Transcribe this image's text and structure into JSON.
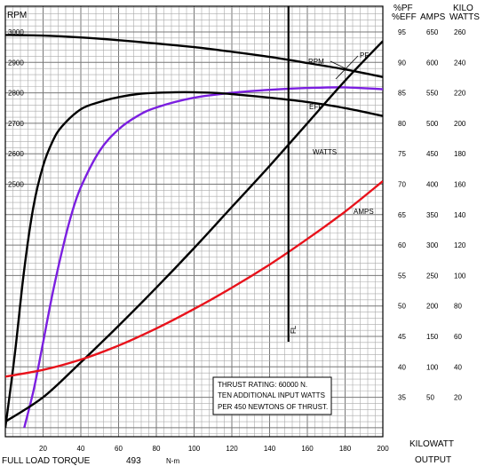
{
  "chart_data": {
    "type": "line",
    "x_axis": {
      "label": "KILOWATT",
      "label2": "OUTPUT",
      "range": [
        0,
        200
      ],
      "ticks": [
        20,
        40,
        60,
        80,
        100,
        120,
        140,
        160,
        180,
        200
      ]
    },
    "footer": {
      "full_load_label": "FULL LOAD TORQUE",
      "full_load_value": "493",
      "full_load_unit": "N-m"
    },
    "rpm_axis": {
      "label": "RPM",
      "range": [
        2200,
        3000
      ],
      "ticks": [
        "3000",
        "2900",
        "2800",
        "2700",
        "2600",
        "2500"
      ]
    },
    "right_axes": {
      "pf_header": "%PF",
      "eff_header": "%EFF",
      "amps_header": "AMPS",
      "kilo_header": "KILO",
      "watts_header": "WATTS",
      "pf_eff": [
        "95",
        "90",
        "85",
        "80",
        "75",
        "70",
        "65",
        "60",
        "55",
        "50",
        "45",
        "40",
        "35"
      ],
      "amps": [
        "650",
        "600",
        "550",
        "500",
        "450",
        "400",
        "350",
        "300",
        "250",
        "200",
        "150",
        "100",
        "50"
      ],
      "kilowatts": [
        "260",
        "240",
        "220",
        "200",
        "180",
        "160",
        "140",
        "120",
        "100",
        "80",
        "60",
        "40",
        "20"
      ]
    },
    "full_load_line": {
      "x": 150,
      "label": "FL"
    },
    "series": [
      {
        "name": "RPM",
        "color": "#000000",
        "axis": "rpm",
        "x": [
          0,
          20,
          40,
          60,
          80,
          100,
          120,
          140,
          160,
          180,
          200
        ],
        "y": [
          2990,
          2988,
          2982,
          2973,
          2962,
          2950,
          2935,
          2918,
          2898,
          2877,
          2852
        ]
      },
      {
        "name": "PF",
        "color": "#7b1fe0",
        "axis": "pf_eff",
        "x": [
          10,
          15,
          20,
          25,
          30,
          35,
          40,
          50,
          60,
          70,
          80,
          100,
          120,
          140,
          160,
          180,
          200
        ],
        "y": [
          30.0,
          36.2,
          44.0,
          52.0,
          59.0,
          65.0,
          69.5,
          75.5,
          79.0,
          81.2,
          82.6,
          84.2,
          85.0,
          85.5,
          85.8,
          85.9,
          85.6
        ]
      },
      {
        "name": "EFF",
        "color": "#000000",
        "axis": "pf_eff",
        "x": [
          0,
          5,
          10,
          15,
          20,
          25,
          30,
          40,
          50,
          60,
          70,
          80,
          90,
          100,
          110,
          120,
          140,
          160,
          180,
          200
        ],
        "y": [
          30.0,
          42.0,
          56.0,
          66.5,
          73.0,
          77.0,
          79.5,
          82.3,
          83.5,
          84.3,
          84.8,
          85.0,
          85.1,
          85.1,
          85.0,
          84.8,
          84.2,
          83.5,
          82.5,
          81.2
        ]
      },
      {
        "name": "WATTS",
        "color": "#000000",
        "axis": "kilowatts",
        "x": [
          0,
          20,
          40,
          60,
          80,
          100,
          120,
          140,
          160,
          180,
          200
        ],
        "y": [
          4,
          20,
          43,
          67,
          92,
          118,
          145,
          172,
          200,
          228,
          254
        ]
      },
      {
        "name": "AMPS",
        "color": "#e8121b",
        "axis": "amps",
        "x": [
          0,
          20,
          40,
          60,
          80,
          100,
          120,
          140,
          160,
          180,
          200
        ],
        "y": [
          84,
          95,
          112,
          135,
          163,
          195,
          230,
          268,
          310,
          355,
          405
        ]
      }
    ],
    "annotation": {
      "lines": [
        "THRUST RATING:  60000 N.",
        "TEN ADDITIONAL INPUT WATTS",
        "PER 450 NEWTONS OF THRUST."
      ]
    },
    "grid": true
  }
}
